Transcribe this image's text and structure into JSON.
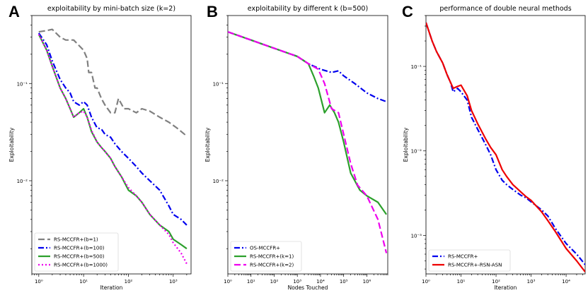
{
  "chart_data": [
    {
      "type": "line",
      "panel": "A",
      "title": "exploitability by mini-batch size (k=2)",
      "xlabel": "Iteration",
      "ylabel": "Exploitability",
      "xscale": "log",
      "yscale": "log",
      "xlim": [
        0.7,
        2500
      ],
      "ylim": [
        0.0011,
        0.5
      ],
      "xticks": [
        {
          "v": 1,
          "l": "10⁰"
        },
        {
          "v": 10,
          "l": "10¹"
        },
        {
          "v": 100,
          "l": "10²"
        },
        {
          "v": 1000,
          "l": "10³"
        }
      ],
      "yticks": [
        {
          "v": 0.1,
          "l": "10⁻¹"
        },
        {
          "v": 0.01,
          "l": "10⁻²"
        }
      ],
      "legend_position": "lower-left",
      "series": [
        {
          "name": "RS-MCCFR+(b=1)",
          "color": "#808080",
          "dash": "9,4",
          "x": [
            1,
            1.5,
            2,
            3,
            4,
            6,
            10,
            12,
            13,
            15,
            18,
            20,
            25,
            30,
            40,
            50,
            60,
            80,
            100,
            150,
            200,
            300,
            500,
            800,
            1200,
            1800,
            2000
          ],
          "y": [
            0.34,
            0.35,
            0.36,
            0.3,
            0.28,
            0.28,
            0.22,
            0.18,
            0.13,
            0.13,
            0.09,
            0.09,
            0.07,
            0.06,
            0.05,
            0.05,
            0.07,
            0.055,
            0.055,
            0.05,
            0.055,
            0.052,
            0.045,
            0.04,
            0.035,
            0.03,
            0.031
          ]
        },
        {
          "name": "RS-MCCFR+(b=100)",
          "color": "#0000ee",
          "dash": "8,3,2,3",
          "x": [
            1,
            1.5,
            2,
            3,
            4,
            5,
            6,
            8,
            10,
            12,
            15,
            20,
            25,
            30,
            40,
            50,
            70,
            100,
            150,
            200,
            300,
            500,
            800,
            1000,
            1500,
            2000
          ],
          "y": [
            0.33,
            0.25,
            0.17,
            0.11,
            0.09,
            0.08,
            0.065,
            0.06,
            0.065,
            0.06,
            0.045,
            0.035,
            0.034,
            0.03,
            0.028,
            0.024,
            0.02,
            0.017,
            0.014,
            0.012,
            0.01,
            0.008,
            0.0055,
            0.0045,
            0.004,
            0.0035
          ]
        },
        {
          "name": "RS-MCCFR+(b=500)",
          "color": "#2ca02c",
          "dash": "",
          "x": [
            1,
            1.5,
            2,
            3,
            4,
            5,
            6,
            8,
            10,
            12,
            15,
            20,
            25,
            30,
            40,
            50,
            70,
            100,
            150,
            200,
            300,
            500,
            800,
            1000,
            1500,
            2000
          ],
          "y": [
            0.32,
            0.22,
            0.15,
            0.09,
            0.07,
            0.055,
            0.045,
            0.05,
            0.055,
            0.045,
            0.032,
            0.025,
            0.022,
            0.02,
            0.017,
            0.014,
            0.011,
            0.008,
            0.007,
            0.006,
            0.0045,
            0.0035,
            0.003,
            0.0025,
            0.0022,
            0.002
          ]
        },
        {
          "name": "RS-MCCFR+(b=1000)",
          "color": "#ee00ee",
          "dash": "2,3",
          "x": [
            1,
            1.5,
            2,
            3,
            4,
            5,
            6,
            8,
            10,
            12,
            15,
            20,
            25,
            30,
            40,
            50,
            70,
            100,
            150,
            200,
            300,
            500,
            800,
            1000,
            1500,
            2000
          ],
          "y": [
            0.32,
            0.22,
            0.15,
            0.09,
            0.07,
            0.055,
            0.045,
            0.05,
            0.052,
            0.045,
            0.033,
            0.025,
            0.022,
            0.02,
            0.017,
            0.014,
            0.011,
            0.0085,
            0.007,
            0.006,
            0.0045,
            0.0035,
            0.0028,
            0.0023,
            0.0018,
            0.0014
          ]
        }
      ]
    },
    {
      "type": "line",
      "panel": "B",
      "title": "exploitability by different k (b=500)",
      "xlabel": "Nodes Touched",
      "ylabel": "Exploitability",
      "xscale": "log",
      "yscale": "log",
      "xlim": [
        1,
        8000000
      ],
      "ylim": [
        0.0011,
        0.5
      ],
      "xticks": [
        {
          "v": 1,
          "l": "10⁰"
        },
        {
          "v": 10,
          "l": "10¹"
        },
        {
          "v": 100,
          "l": "10²"
        },
        {
          "v": 1000,
          "l": "10³"
        },
        {
          "v": 10000,
          "l": "10⁴"
        },
        {
          "v": 100000,
          "l": "10⁵"
        },
        {
          "v": 1000000,
          "l": "10⁶"
        }
      ],
      "yticks": [
        {
          "v": 0.1,
          "l": "10⁻¹"
        },
        {
          "v": 0.01,
          "l": "10⁻²"
        }
      ],
      "legend_position": "lower-left",
      "series": [
        {
          "name": "OS-MCCFR+",
          "color": "#0000ee",
          "dash": "8,3,2,3",
          "x": [
            1,
            10,
            100,
            1000,
            3000,
            10000,
            30000,
            60000,
            100000,
            300000,
            1000000,
            3000000,
            7000000
          ],
          "y": [
            0.34,
            0.28,
            0.23,
            0.19,
            0.16,
            0.14,
            0.13,
            0.135,
            0.12,
            0.1,
            0.08,
            0.07,
            0.065
          ]
        },
        {
          "name": "RS-MCCFR+(k=1)",
          "color": "#2ca02c",
          "dash": "",
          "x": [
            1,
            10,
            100,
            1000,
            3000,
            5000,
            8000,
            15000,
            25000,
            40000,
            60000,
            100000,
            200000,
            500000,
            1000000,
            3000000,
            7000000
          ],
          "y": [
            0.34,
            0.28,
            0.23,
            0.19,
            0.16,
            0.12,
            0.09,
            0.05,
            0.06,
            0.05,
            0.04,
            0.025,
            0.012,
            0.008,
            0.007,
            0.006,
            0.0045
          ]
        },
        {
          "name": "RS-MCCFR+(k=2)",
          "color": "#ee00ee",
          "dash": "9,4",
          "x": [
            1,
            10,
            100,
            1000,
            3000,
            8000,
            15000,
            30000,
            60000,
            100000,
            200000,
            400000,
            1000000,
            3000000,
            7000000
          ],
          "y": [
            0.34,
            0.28,
            0.23,
            0.19,
            0.16,
            0.14,
            0.1,
            0.055,
            0.05,
            0.03,
            0.015,
            0.009,
            0.007,
            0.004,
            0.0018
          ]
        }
      ]
    },
    {
      "type": "line",
      "panel": "C",
      "title": "performance of double neural methods",
      "xlabel": "Iteration",
      "ylabel": "Exploitability",
      "xscale": "log",
      "yscale": "log",
      "xlim": [
        1,
        35000
      ],
      "ylim": [
        0.00035,
        0.4
      ],
      "xticks": [
        {
          "v": 1,
          "l": "10⁰"
        },
        {
          "v": 10,
          "l": "10¹"
        },
        {
          "v": 100,
          "l": "10²"
        },
        {
          "v": 1000,
          "l": "10³"
        },
        {
          "v": 10000,
          "l": "10⁴"
        }
      ],
      "yticks": [
        {
          "v": 0.1,
          "l": "10⁻¹"
        },
        {
          "v": 0.01,
          "l": "10⁻²"
        },
        {
          "v": 0.001,
          "l": "10⁻³"
        }
      ],
      "legend_position": "lower-left",
      "series": [
        {
          "name": "RS-MCCFR+",
          "color": "#0000ee",
          "dash": "8,3,2,3",
          "x": [
            1,
            1.5,
            2,
            3,
            4,
            5,
            6,
            8,
            10,
            15,
            20,
            30,
            50,
            70,
            100,
            150,
            200,
            300,
            500,
            700,
            1000,
            2000,
            3000,
            5000,
            10000,
            20000,
            35000
          ],
          "y": [
            0.33,
            0.2,
            0.15,
            0.11,
            0.08,
            0.065,
            0.05,
            0.055,
            0.05,
            0.04,
            0.025,
            0.018,
            0.012,
            0.009,
            0.006,
            0.0045,
            0.004,
            0.0035,
            0.003,
            0.0028,
            0.0025,
            0.002,
            0.0017,
            0.0012,
            0.0008,
            0.0006,
            0.00045
          ]
        },
        {
          "name": "RS-MCCFR+-RSN-ASN",
          "color": "#ee0000",
          "dash": "",
          "x": [
            1,
            1.5,
            2,
            3,
            4,
            5,
            6,
            8,
            10,
            15,
            20,
            30,
            50,
            70,
            100,
            150,
            200,
            300,
            500,
            700,
            1000,
            2000,
            3000,
            5000,
            10000,
            20000,
            35000
          ],
          "y": [
            0.33,
            0.2,
            0.15,
            0.11,
            0.08,
            0.065,
            0.055,
            0.058,
            0.06,
            0.045,
            0.03,
            0.021,
            0.014,
            0.011,
            0.009,
            0.006,
            0.005,
            0.004,
            0.0033,
            0.0029,
            0.0026,
            0.0019,
            0.0015,
            0.0011,
            0.0007,
            0.0005,
            0.00037
          ]
        }
      ]
    }
  ]
}
